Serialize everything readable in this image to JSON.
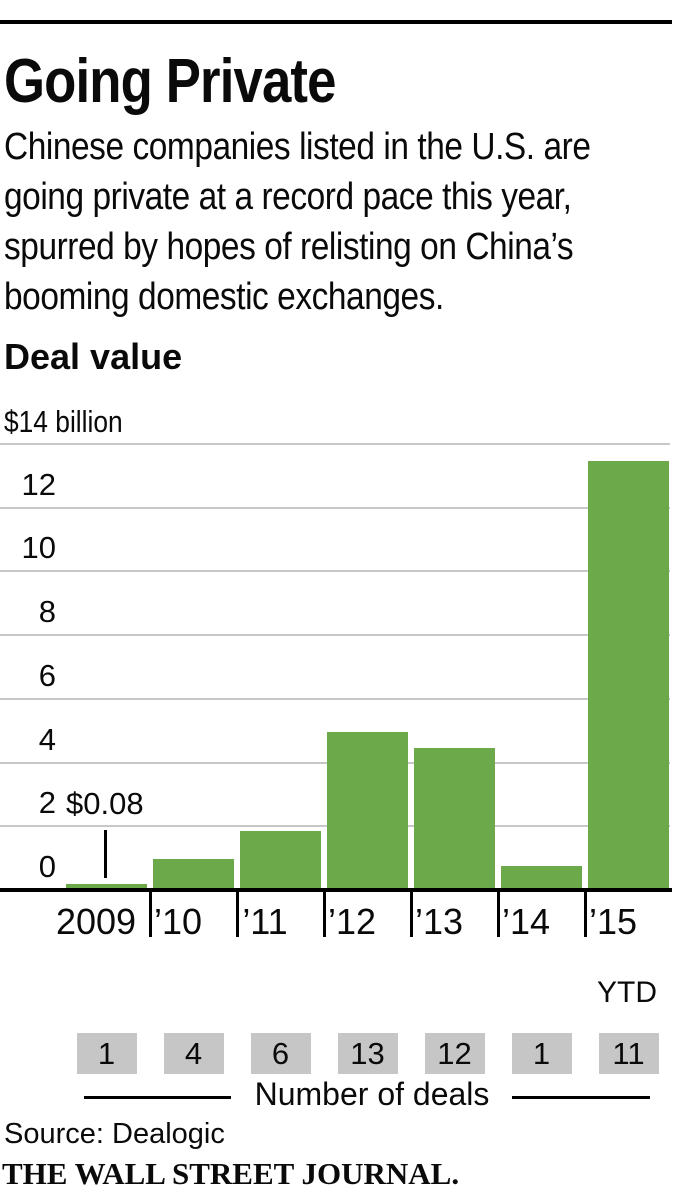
{
  "header": {
    "title": "Going Private",
    "subtitle_lines": [
      "Chinese companies listed in the U.S. are",
      "going private at a record pace this year,",
      "spurred by hopes of relisting on China’s",
      "booming domestic exchanges."
    ]
  },
  "chart": {
    "section_label": "Deal value",
    "unit_label": "$14 billion",
    "annotation_text": "$0.08",
    "ytd_label": "YTD",
    "deals_caption": "Number of deals",
    "colors": {
      "bar": "#6ca94a",
      "gridline": "#c7c7c7",
      "axis": "#000000",
      "deal_box": "#c6c6c6"
    }
  },
  "chart_data": {
    "type": "bar",
    "title": "Going Private",
    "categories": [
      "2009",
      "’10",
      "’11",
      "’12",
      "’13",
      "’14",
      "’15"
    ],
    "series": [
      {
        "name": "Deal value ($ billion)",
        "values": [
          0.08,
          0.9,
          1.8,
          4.9,
          4.4,
          0.7,
          13.4
        ]
      },
      {
        "name": "Number of deals",
        "values": [
          1,
          4,
          6,
          13,
          12,
          1,
          11
        ]
      }
    ],
    "ylabel": "$14 billion",
    "xlabel": "",
    "ylim": [
      0,
      14
    ],
    "yticks": [
      0,
      2,
      4,
      6,
      8,
      10,
      12,
      14
    ],
    "grid": true,
    "legend_position": "none",
    "annotations": [
      {
        "category": "2009",
        "label": "$0.08"
      }
    ],
    "last_bar_note": "YTD"
  },
  "footer": {
    "source": "Source: Dealogic",
    "brand": "THE WALL STREET JOURNAL."
  }
}
